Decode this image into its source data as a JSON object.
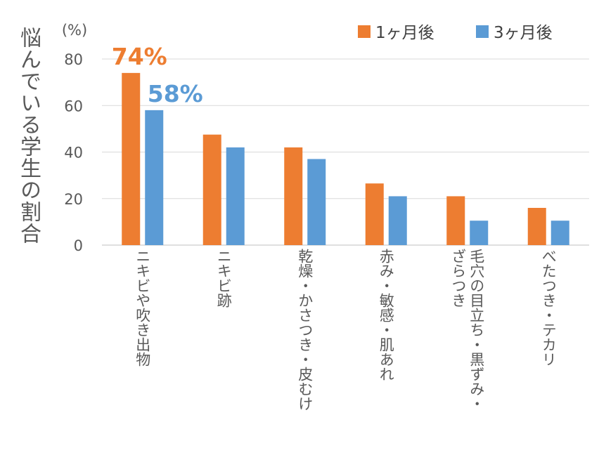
{
  "chart_data": {
    "type": "bar",
    "title": "",
    "ylabel": "悩んでいる学生の割合",
    "yunit": "(%)",
    "ylim": [
      0,
      80
    ],
    "yticks": [
      0,
      20,
      40,
      60,
      80
    ],
    "grid": true,
    "legend_position": "top-right",
    "categories": [
      "ニキビや吹き出物",
      "ニキビ跡",
      "乾燥・かさつき・皮むけ",
      "赤み・敏感・肌あれ",
      "毛穴の目立ち・黒ずみ・ざらつき",
      "べたつき・テカリ"
    ],
    "category_lines": [
      [
        "ニキビや吹き出物"
      ],
      [
        "ニキビ跡"
      ],
      [
        "乾燥・かさつき・皮むけ"
      ],
      [
        "赤み・敏感・肌あれ"
      ],
      [
        "毛穴の目立ち・黒ずみ・",
        "ざらつき"
      ],
      [
        "べたつき・テカリ"
      ]
    ],
    "series": [
      {
        "name": "1ヶ月後",
        "color": "#ED7D31",
        "values": [
          74,
          47.5,
          42,
          26.5,
          21,
          16
        ]
      },
      {
        "name": "3ヶ月後",
        "color": "#5B9BD5",
        "values": [
          58,
          42,
          37,
          21,
          10.5,
          10.5
        ]
      }
    ],
    "annotations": [
      {
        "text": "74%",
        "series": 0,
        "category": 0,
        "color": "#ED7D31"
      },
      {
        "text": "58%",
        "series": 1,
        "category": 0,
        "color": "#5B9BD5"
      }
    ]
  }
}
